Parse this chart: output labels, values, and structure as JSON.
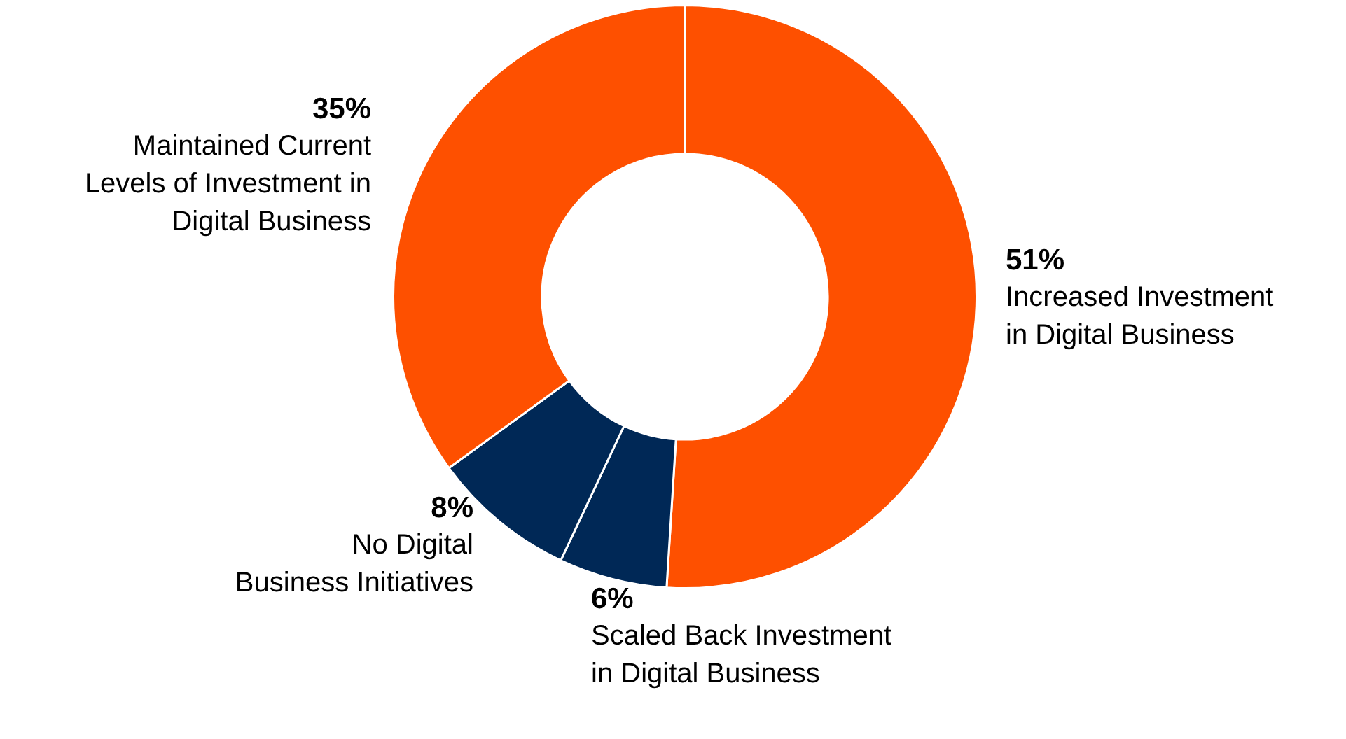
{
  "chart_data": {
    "type": "donut",
    "categories": [
      "Increased Investment in Digital Business",
      "Scaled Back Investment in Digital Business",
      "No Digital Business Initiatives",
      "Maintained Current Levels of Investment in Digital Business"
    ],
    "values": [
      51,
      6,
      8,
      35
    ],
    "colors": [
      "#fe5000",
      "#002856",
      "#002856",
      "#fe5000"
    ],
    "value_labels": [
      "51%",
      "6%",
      "8%",
      "35%"
    ],
    "legend": false
  }
}
